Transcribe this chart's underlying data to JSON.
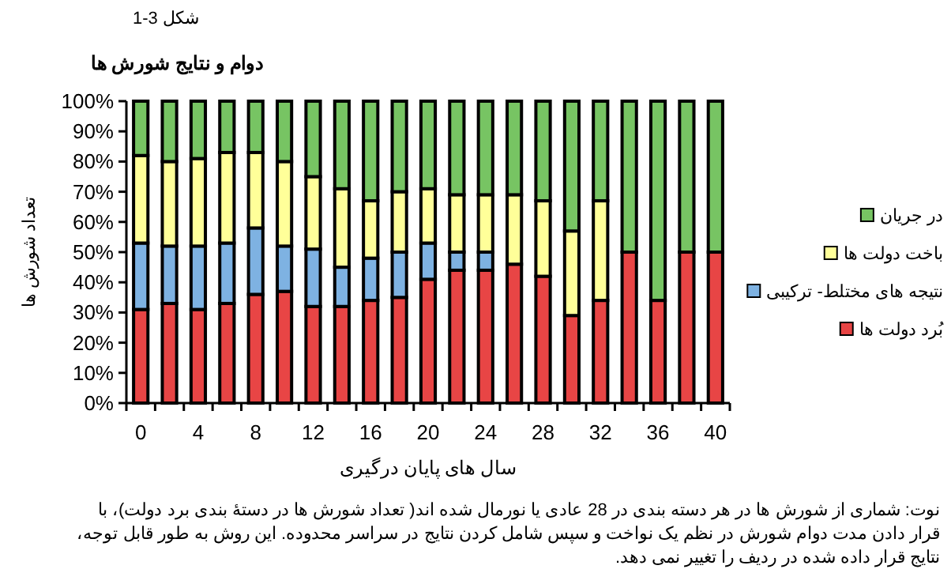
{
  "chart_data": {
    "type": "bar",
    "stacked": true,
    "title": "دوام و نتایج شورش ها",
    "xlabel": "سال های پایان درگیری",
    "ylabel": "تعداد شورش ها",
    "categories": [
      "0",
      null,
      "4",
      null,
      "8",
      null,
      "12",
      null,
      "16",
      null,
      "20",
      null,
      "24",
      null,
      "28",
      null,
      "32",
      null,
      "36",
      null,
      "40"
    ],
    "series": [
      {
        "name": "بُرد دولت ها",
        "color": "#e84545",
        "values": [
          31,
          33,
          31,
          33,
          36,
          37,
          32,
          32,
          34,
          35,
          41,
          44,
          44,
          46,
          42,
          29,
          34,
          50,
          34,
          50,
          50
        ]
      },
      {
        "name": "نتیجه های مختلط- ترکیبی",
        "color": "#7eb2e2",
        "values": [
          22,
          19,
          21,
          20,
          22,
          15,
          19,
          13,
          14,
          15,
          12,
          6,
          6,
          0,
          0,
          0,
          0,
          0,
          0,
          0,
          0
        ]
      },
      {
        "name": "باخت دولت ها",
        "color": "#ffff99",
        "values": [
          29,
          28,
          29,
          30,
          25,
          28,
          24,
          26,
          19,
          20,
          18,
          19,
          19,
          23,
          25,
          28,
          33,
          0,
          0,
          0,
          0
        ]
      },
      {
        "name": "در جریان",
        "color": "#77c463",
        "values": [
          18,
          20,
          19,
          17,
          17,
          20,
          25,
          29,
          33,
          30,
          29,
          31,
          31,
          31,
          33,
          43,
          33,
          50,
          66,
          50,
          50
        ]
      }
    ],
    "ylim": [
      0,
      100
    ],
    "yticks": [
      {
        "value": 0,
        "label": "0%"
      },
      {
        "value": 10,
        "label": "10%"
      },
      {
        "value": 20,
        "label": "20%"
      },
      {
        "value": 30,
        "label": "30%"
      },
      {
        "value": 40,
        "label": "40%"
      },
      {
        "value": 50,
        "label": "50%"
      },
      {
        "value": 60,
        "label": "60%"
      },
      {
        "value": 70,
        "label": "70%"
      },
      {
        "value": 80,
        "label": "80%"
      },
      {
        "value": 90,
        "label": "90%"
      },
      {
        "value": 100,
        "label": "100%"
      }
    ],
    "grid": false,
    "legend": "right",
    "annotations": [
      "شکل 3-1",
      "نوت: شماری از شورش ها در هر دسته بندی در 28 عادی یا نورمال شده اند( تعداد شورش ها در دستهٔ بندی برد دولت)، با قرار دادن مدت دوام شورش در نظم یک نواخت و سپس شامل کردن نتایج در سراسر محدوده. این روش به طور قابل توجه، نتایج قرار داده شده در ردیف را تغییر نمی دهد."
    ]
  }
}
